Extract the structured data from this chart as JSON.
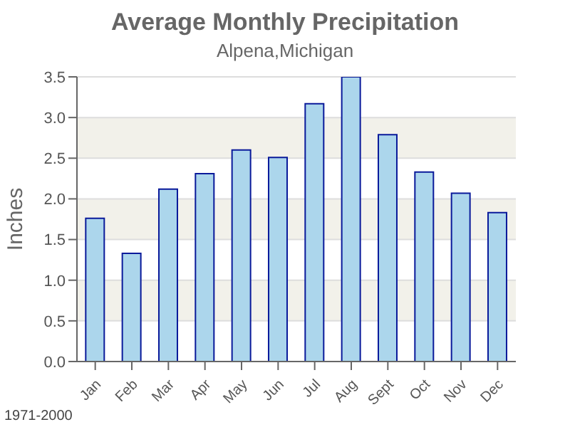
{
  "chart_data": {
    "type": "bar",
    "title": "Average Monthly Precipitation",
    "subtitle": "Alpena,Michigan",
    "ylabel": "Inches",
    "categories": [
      "Jan",
      "Feb",
      "Mar",
      "Apr",
      "May",
      "Jun",
      "Jul",
      "Aug",
      "Sept",
      "Oct",
      "Nov",
      "Dec"
    ],
    "values": [
      1.76,
      1.33,
      2.12,
      2.31,
      2.6,
      2.51,
      3.17,
      3.5,
      2.79,
      2.33,
      2.07,
      1.83
    ],
    "color": "#acd6ec",
    "ylim": [
      0,
      3.5
    ],
    "yticks": [
      {
        "value": 0,
        "label": "0.0"
      },
      0.5,
      {
        "value": 1,
        "label": "1.0"
      },
      1.5,
      {
        "value": 2,
        "label": "2.0"
      },
      2.5,
      {
        "value": 3,
        "label": "3.0"
      },
      3.5
    ],
    "grid": "y",
    "annotations": [
      "1971-2000"
    ]
  }
}
